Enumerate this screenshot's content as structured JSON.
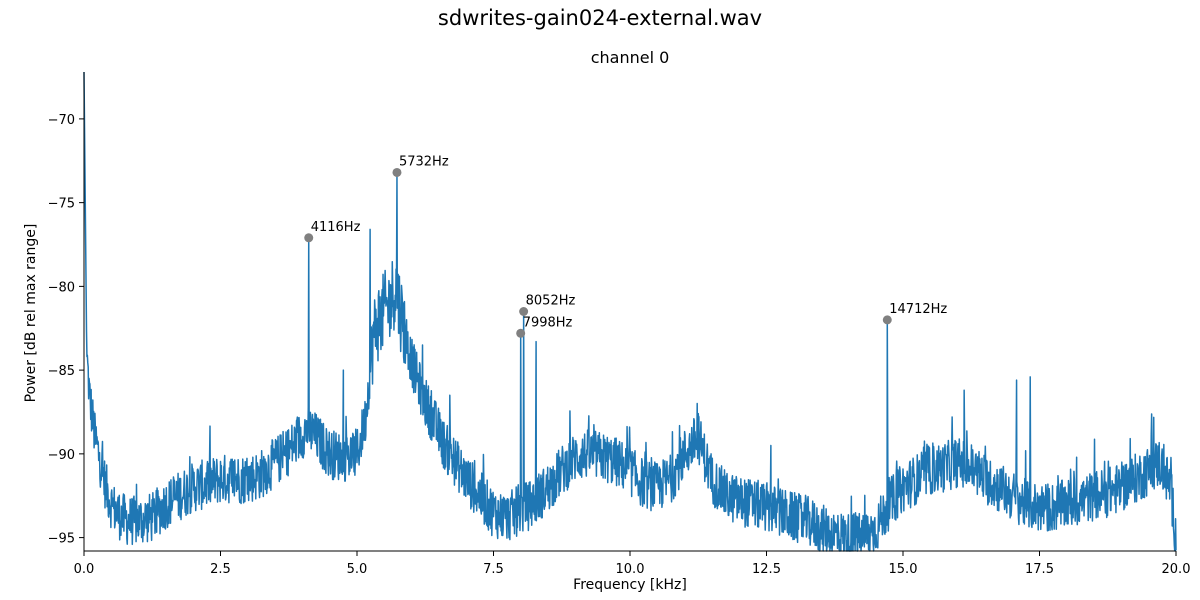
{
  "figure": {
    "suptitle": "sdwrites-gain024-external.wav",
    "title": "channel 0"
  },
  "chart_data": {
    "type": "line",
    "title": "channel 0",
    "xlabel": "Frequency [kHz]",
    "ylabel": "Power [dB rel max range]",
    "xlim": [
      0,
      20
    ],
    "ylim": [
      -95.8,
      -67.2
    ],
    "xticks": [
      0.0,
      2.5,
      5.0,
      7.5,
      10.0,
      12.5,
      15.0,
      17.5,
      20.0
    ],
    "xtick_labels": [
      "0.0",
      "2.5",
      "5.0",
      "7.5",
      "10.0",
      "12.5",
      "15.0",
      "17.5",
      "20.0"
    ],
    "yticks": [
      -95,
      -90,
      -85,
      -80,
      -75,
      -70
    ],
    "ytick_labels": [
      "−95",
      "−90",
      "−85",
      "−80",
      "−75",
      "−70"
    ],
    "grid": false,
    "line_color": "#1f77b4",
    "marker_color": "#808080",
    "series": [
      {
        "x": [
          0.0,
          0.05,
          0.1,
          0.2,
          0.3,
          0.4,
          0.5,
          0.6,
          0.7,
          0.8,
          0.9,
          1.0,
          1.25,
          1.5,
          1.75,
          2.0,
          2.25,
          2.5,
          2.75,
          3.0,
          3.25,
          3.5,
          3.75,
          4.0,
          4.1,
          4.3,
          4.5,
          4.75,
          5.0,
          5.15,
          5.3,
          5.4,
          5.5,
          5.6,
          5.7,
          5.8,
          5.9,
          6.0,
          6.2,
          6.4,
          6.6,
          6.8,
          7.0,
          7.25,
          7.5,
          7.75,
          7.9,
          8.2,
          8.5,
          8.75,
          9.0,
          9.25,
          9.5,
          9.75,
          10.0,
          10.25,
          10.5,
          10.75,
          11.0,
          11.25,
          11.5,
          11.75,
          12.0,
          12.25,
          12.5,
          12.75,
          13.0,
          13.25,
          13.5,
          13.75,
          14.0,
          14.25,
          14.5,
          14.75,
          15.0,
          15.25,
          15.5,
          15.75,
          16.0,
          16.25,
          16.5,
          16.75,
          17.0,
          17.25,
          17.5,
          17.75,
          18.0,
          18.25,
          18.5,
          18.75,
          19.0,
          19.25,
          19.5,
          19.7,
          19.9,
          20.0
        ],
        "y": [
          -67.2,
          -84.0,
          -86.5,
          -89.0,
          -90.5,
          -92.0,
          -93.0,
          -93.5,
          -93.8,
          -94.0,
          -94.0,
          -94.0,
          -93.8,
          -93.0,
          -92.5,
          -92.0,
          -91.8,
          -91.5,
          -91.5,
          -91.5,
          -91.2,
          -90.5,
          -89.8,
          -88.8,
          -88.5,
          -89.2,
          -90.0,
          -90.2,
          -90.0,
          -88.0,
          -83.0,
          -82.0,
          -81.5,
          -81.0,
          -80.0,
          -81.5,
          -83.0,
          -84.5,
          -86.5,
          -88.0,
          -89.5,
          -90.5,
          -91.5,
          -92.5,
          -93.5,
          -93.8,
          -93.5,
          -93.0,
          -92.0,
          -91.0,
          -90.2,
          -90.0,
          -90.2,
          -90.5,
          -91.0,
          -91.8,
          -92.0,
          -91.5,
          -90.0,
          -89.0,
          -91.5,
          -92.5,
          -92.8,
          -93.0,
          -93.2,
          -93.5,
          -93.8,
          -94.0,
          -94.5,
          -94.8,
          -95.0,
          -95.0,
          -94.5,
          -93.0,
          -92.0,
          -91.5,
          -91.0,
          -90.8,
          -90.5,
          -90.8,
          -91.5,
          -92.0,
          -92.5,
          -93.0,
          -93.2,
          -93.2,
          -93.0,
          -92.8,
          -92.5,
          -92.3,
          -92.0,
          -91.5,
          -91.0,
          -90.5,
          -92.0,
          -95.0
        ]
      }
    ],
    "spikes": [
      {
        "x": 4.116,
        "y": -77.1
      },
      {
        "x": 5.24,
        "y": -76.6
      },
      {
        "x": 5.732,
        "y": -73.2
      },
      {
        "x": 4.75,
        "y": -85.0
      },
      {
        "x": 6.2,
        "y": -83.5
      },
      {
        "x": 6.7,
        "y": -86.5
      },
      {
        "x": 7.998,
        "y": -82.8
      },
      {
        "x": 8.052,
        "y": -81.5
      },
      {
        "x": 8.28,
        "y": -83.3
      },
      {
        "x": 11.25,
        "y": -87.6
      },
      {
        "x": 12.58,
        "y": -89.5
      },
      {
        "x": 14.712,
        "y": -82.0
      },
      {
        "x": 15.9,
        "y": -87.8
      },
      {
        "x": 16.12,
        "y": -86.2
      },
      {
        "x": 17.08,
        "y": -85.6
      },
      {
        "x": 17.33,
        "y": -85.4
      },
      {
        "x": 18.18,
        "y": -90.2
      }
    ],
    "peaks": [
      {
        "x": 4.116,
        "y": -77.1,
        "label": "4116Hz"
      },
      {
        "x": 5.732,
        "y": -73.2,
        "label": "5732Hz"
      },
      {
        "x": 7.998,
        "y": -82.8,
        "label": "7998Hz"
      },
      {
        "x": 8.052,
        "y": -81.5,
        "label": "8052Hz"
      },
      {
        "x": 14.712,
        "y": -82.0,
        "label": "14712Hz"
      }
    ]
  }
}
